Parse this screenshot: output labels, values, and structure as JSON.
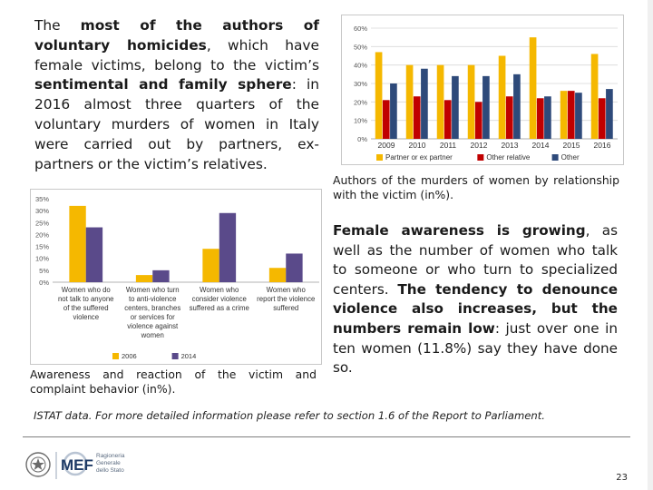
{
  "left_paragraph": {
    "s1": "The ",
    "b1": "most of the authors of voluntary homicides",
    "s2": ", which have female victims, belong to the victim’s ",
    "b2": "sentimental and family sphere",
    "s3": ": in 2016 almost three quarters of the voluntary murders of women in Italy were carried out by partners, ex-partners or the victim’s relatives."
  },
  "right_paragraph": {
    "b1": "Female awareness is growing",
    "s1": ", as well as the number of women who talk to someone or who turn to specialized centers. ",
    "b2": "The tendency to denounce violence also increases, but the numbers remain low",
    "s2": ": just over one in ten women (11.8%) say they have done so."
  },
  "caption_top": "Authors of the murders of women by relationship with the victim (in%).",
  "caption_bottom": "Awareness and reaction of the victim and complaint behavior (in%).",
  "source_note": "ISTAT data. For more detailed information please refer to section 1.6 of the Report to Parliament.",
  "logo": {
    "mef": "MEF",
    "line1": "Ragioneria",
    "line2": "Generale",
    "line3": "dello Stato"
  },
  "page_number": "23",
  "chart_data": [
    {
      "type": "bar",
      "title": "",
      "categories": [
        "2009",
        "2010",
        "2011",
        "2012",
        "2013",
        "2014",
        "2015",
        "2016"
      ],
      "series": [
        {
          "name": "Partner or ex partner",
          "color": "#f5b800",
          "values": [
            47,
            40,
            40,
            40,
            45,
            55,
            26,
            46
          ]
        },
        {
          "name": "Other relative",
          "color": "#c00000",
          "values": [
            21,
            23,
            21,
            20,
            23,
            22,
            26,
            22
          ]
        },
        {
          "name": "Other",
          "color": "#2e4a7a",
          "values": [
            30,
            38,
            34,
            34,
            35,
            23,
            25,
            27
          ]
        }
      ],
      "ylim": [
        0,
        60
      ],
      "yticks": [
        "0%",
        "10%",
        "20%",
        "30%",
        "40%",
        "50%",
        "60%"
      ],
      "ytick_values": [
        0,
        10,
        20,
        30,
        40,
        50,
        60
      ],
      "legend": "bottom"
    },
    {
      "type": "bar",
      "title": "",
      "categories": [
        [
          "Women who do",
          "not talk to anyone",
          "of the suffered",
          "violence"
        ],
        [
          "Women who turn",
          "to anti-violence",
          "centers, branches",
          "or services for",
          "violence against",
          "women"
        ],
        [
          "Women who",
          "consider violence",
          "suffered as a crime"
        ],
        [
          "Women who",
          "report the violence",
          "suffered"
        ]
      ],
      "series": [
        {
          "name": "2006",
          "color": "#f5b800",
          "values": [
            32,
            3,
            14,
            6
          ]
        },
        {
          "name": "2014",
          "color": "#5a4a8a",
          "values": [
            23,
            5,
            29,
            12
          ]
        }
      ],
      "ylim": [
        0,
        35
      ],
      "yticks": [
        "0%",
        "5%",
        "10%",
        "15%",
        "20%",
        "25%",
        "30%",
        "35%"
      ],
      "ytick_values": [
        0,
        5,
        10,
        15,
        20,
        25,
        30,
        35
      ],
      "legend": "bottom"
    }
  ]
}
